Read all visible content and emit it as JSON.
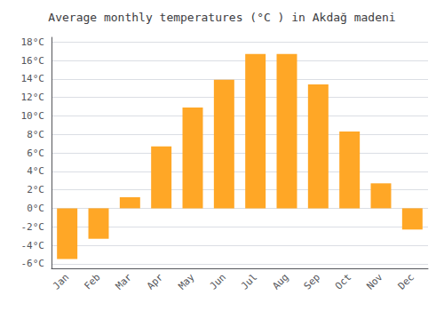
{
  "chart_data": {
    "type": "bar",
    "title": "Average monthly temperatures (°C ) in Akdağ madeni",
    "categories": [
      "Jan",
      "Feb",
      "Mar",
      "Apr",
      "May",
      "Jun",
      "Jul",
      "Aug",
      "Sep",
      "Oct",
      "Nov",
      "Dec"
    ],
    "values": [
      -5.5,
      -3.3,
      1.2,
      6.7,
      10.9,
      13.9,
      16.7,
      16.7,
      13.4,
      8.3,
      2.7,
      -2.3
    ],
    "color": "#FFA726",
    "ylim": [
      -6.5,
      18.5
    ],
    "yticks": [
      {
        "value": -6,
        "label": "-6°C"
      },
      {
        "value": -4,
        "label": "-4°C"
      },
      {
        "value": -2,
        "label": "-2°C"
      },
      {
        "value": 0,
        "label": "0°C"
      },
      {
        "value": 2,
        "label": "2°C"
      },
      {
        "value": 4,
        "label": "4°C"
      },
      {
        "value": 6,
        "label": "6°C"
      },
      {
        "value": 8,
        "label": "8°C"
      },
      {
        "value": 10,
        "label": "10°C"
      },
      {
        "value": 12,
        "label": "12°C"
      },
      {
        "value": 14,
        "label": "14°C"
      },
      {
        "value": 16,
        "label": "16°C"
      },
      {
        "value": 18,
        "label": "18°C"
      }
    ],
    "grid": true
  }
}
